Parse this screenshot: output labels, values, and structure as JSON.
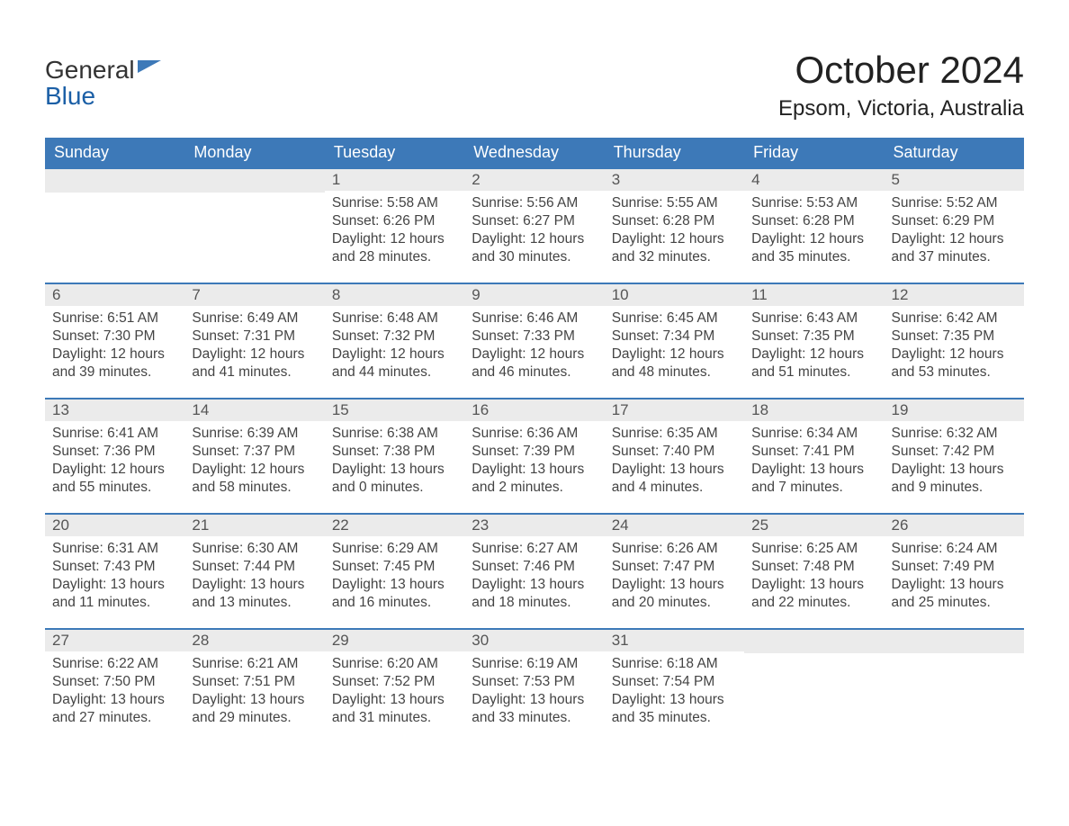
{
  "brand": {
    "line1": "General",
    "line2": "Blue",
    "icon_color": "#3d79b8"
  },
  "title": "October 2024",
  "location": "Epsom, Victoria, Australia",
  "colors": {
    "header_bg": "#3d79b8",
    "header_text": "#ffffff",
    "daynum_bg": "#ebebeb",
    "row_divider": "#3d79b8",
    "body_text": "#444444"
  },
  "weekdays": [
    "Sunday",
    "Monday",
    "Tuesday",
    "Wednesday",
    "Thursday",
    "Friday",
    "Saturday"
  ],
  "first_day_index": 2,
  "days": [
    {
      "n": 1,
      "sunrise": "5:58 AM",
      "sunset": "6:26 PM",
      "daylight": "12 hours and 28 minutes."
    },
    {
      "n": 2,
      "sunrise": "5:56 AM",
      "sunset": "6:27 PM",
      "daylight": "12 hours and 30 minutes."
    },
    {
      "n": 3,
      "sunrise": "5:55 AM",
      "sunset": "6:28 PM",
      "daylight": "12 hours and 32 minutes."
    },
    {
      "n": 4,
      "sunrise": "5:53 AM",
      "sunset": "6:28 PM",
      "daylight": "12 hours and 35 minutes."
    },
    {
      "n": 5,
      "sunrise": "5:52 AM",
      "sunset": "6:29 PM",
      "daylight": "12 hours and 37 minutes."
    },
    {
      "n": 6,
      "sunrise": "6:51 AM",
      "sunset": "7:30 PM",
      "daylight": "12 hours and 39 minutes."
    },
    {
      "n": 7,
      "sunrise": "6:49 AM",
      "sunset": "7:31 PM",
      "daylight": "12 hours and 41 minutes."
    },
    {
      "n": 8,
      "sunrise": "6:48 AM",
      "sunset": "7:32 PM",
      "daylight": "12 hours and 44 minutes."
    },
    {
      "n": 9,
      "sunrise": "6:46 AM",
      "sunset": "7:33 PM",
      "daylight": "12 hours and 46 minutes."
    },
    {
      "n": 10,
      "sunrise": "6:45 AM",
      "sunset": "7:34 PM",
      "daylight": "12 hours and 48 minutes."
    },
    {
      "n": 11,
      "sunrise": "6:43 AM",
      "sunset": "7:35 PM",
      "daylight": "12 hours and 51 minutes."
    },
    {
      "n": 12,
      "sunrise": "6:42 AM",
      "sunset": "7:35 PM",
      "daylight": "12 hours and 53 minutes."
    },
    {
      "n": 13,
      "sunrise": "6:41 AM",
      "sunset": "7:36 PM",
      "daylight": "12 hours and 55 minutes."
    },
    {
      "n": 14,
      "sunrise": "6:39 AM",
      "sunset": "7:37 PM",
      "daylight": "12 hours and 58 minutes."
    },
    {
      "n": 15,
      "sunrise": "6:38 AM",
      "sunset": "7:38 PM",
      "daylight": "13 hours and 0 minutes."
    },
    {
      "n": 16,
      "sunrise": "6:36 AM",
      "sunset": "7:39 PM",
      "daylight": "13 hours and 2 minutes."
    },
    {
      "n": 17,
      "sunrise": "6:35 AM",
      "sunset": "7:40 PM",
      "daylight": "13 hours and 4 minutes."
    },
    {
      "n": 18,
      "sunrise": "6:34 AM",
      "sunset": "7:41 PM",
      "daylight": "13 hours and 7 minutes."
    },
    {
      "n": 19,
      "sunrise": "6:32 AM",
      "sunset": "7:42 PM",
      "daylight": "13 hours and 9 minutes."
    },
    {
      "n": 20,
      "sunrise": "6:31 AM",
      "sunset": "7:43 PM",
      "daylight": "13 hours and 11 minutes."
    },
    {
      "n": 21,
      "sunrise": "6:30 AM",
      "sunset": "7:44 PM",
      "daylight": "13 hours and 13 minutes."
    },
    {
      "n": 22,
      "sunrise": "6:29 AM",
      "sunset": "7:45 PM",
      "daylight": "13 hours and 16 minutes."
    },
    {
      "n": 23,
      "sunrise": "6:27 AM",
      "sunset": "7:46 PM",
      "daylight": "13 hours and 18 minutes."
    },
    {
      "n": 24,
      "sunrise": "6:26 AM",
      "sunset": "7:47 PM",
      "daylight": "13 hours and 20 minutes."
    },
    {
      "n": 25,
      "sunrise": "6:25 AM",
      "sunset": "7:48 PM",
      "daylight": "13 hours and 22 minutes."
    },
    {
      "n": 26,
      "sunrise": "6:24 AM",
      "sunset": "7:49 PM",
      "daylight": "13 hours and 25 minutes."
    },
    {
      "n": 27,
      "sunrise": "6:22 AM",
      "sunset": "7:50 PM",
      "daylight": "13 hours and 27 minutes."
    },
    {
      "n": 28,
      "sunrise": "6:21 AM",
      "sunset": "7:51 PM",
      "daylight": "13 hours and 29 minutes."
    },
    {
      "n": 29,
      "sunrise": "6:20 AM",
      "sunset": "7:52 PM",
      "daylight": "13 hours and 31 minutes."
    },
    {
      "n": 30,
      "sunrise": "6:19 AM",
      "sunset": "7:53 PM",
      "daylight": "13 hours and 33 minutes."
    },
    {
      "n": 31,
      "sunrise": "6:18 AM",
      "sunset": "7:54 PM",
      "daylight": "13 hours and 35 minutes."
    }
  ],
  "labels": {
    "sunrise": "Sunrise:",
    "sunset": "Sunset:",
    "daylight": "Daylight:"
  }
}
